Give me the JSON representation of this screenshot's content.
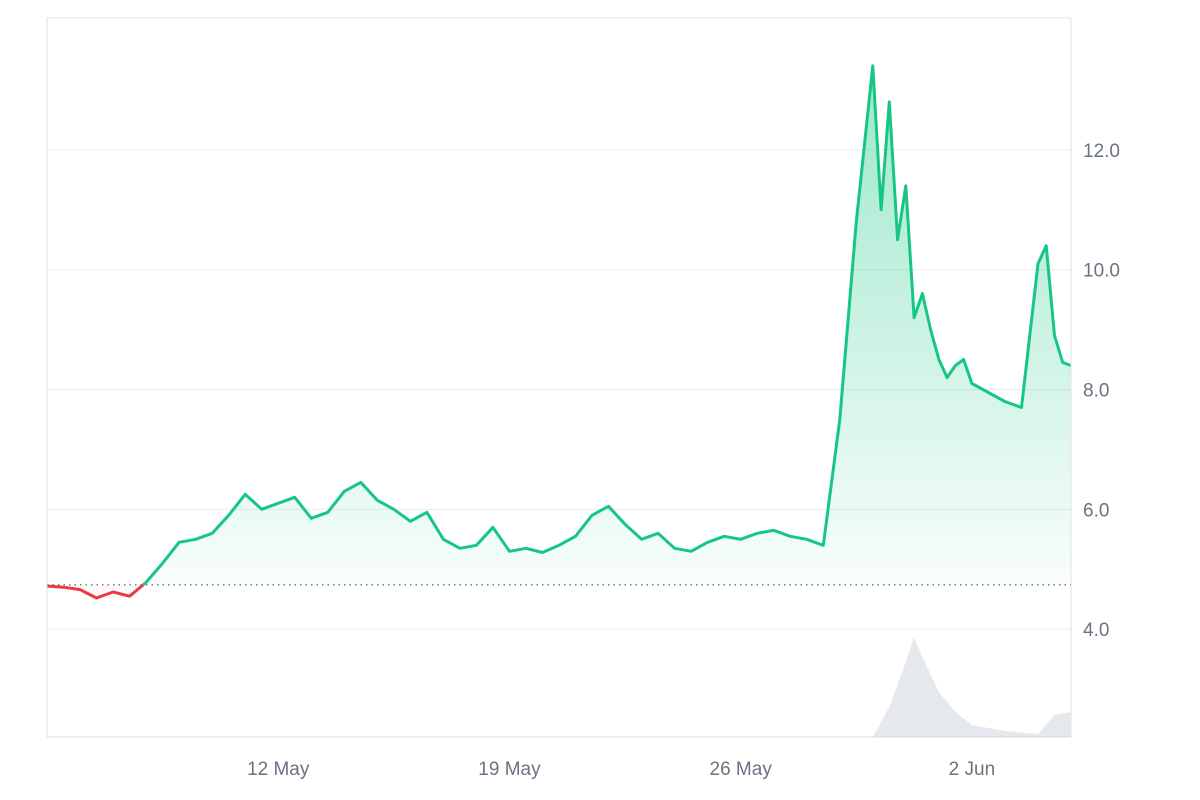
{
  "chart_data": {
    "type": "area",
    "x_tick_labels": [
      "12 May",
      "19 May",
      "26 May",
      "2 Jun"
    ],
    "x_ticks": [
      "2024-05-12",
      "2024-05-19",
      "2024-05-26",
      "2024-06-02"
    ],
    "x_range": [
      "2024-05-05",
      "2024-06-05"
    ],
    "y_ticks": [
      4.0,
      6.0,
      8.0,
      10.0,
      12.0
    ],
    "y_tick_labels": [
      "4.0",
      "6.0",
      "8.0",
      "10.0",
      "12.0"
    ],
    "ylim": [
      2.2,
      14.2
    ],
    "grid": true,
    "baseline": 4.74,
    "colors": {
      "up": "#16c784",
      "down": "#ea3943",
      "volume": "#e5e9ee",
      "grid": "#ececec",
      "baseline": "#555555"
    },
    "series": [
      {
        "x": [
          "2024-05-05",
          "2024-05-05T12:00",
          "2024-05-06",
          "2024-05-06T12:00",
          "2024-05-07",
          "2024-05-07T12:00",
          "2024-05-08",
          "2024-05-08T12:00",
          "2024-05-09",
          "2024-05-09T12:00",
          "2024-05-10",
          "2024-05-10T12:00",
          "2024-05-11",
          "2024-05-11T12:00",
          "2024-05-12",
          "2024-05-12T12:00",
          "2024-05-13",
          "2024-05-13T12:00",
          "2024-05-14",
          "2024-05-14T12:00",
          "2024-05-15",
          "2024-05-15T12:00",
          "2024-05-16",
          "2024-05-16T12:00",
          "2024-05-17",
          "2024-05-17T12:00",
          "2024-05-18",
          "2024-05-18T12:00",
          "2024-05-19",
          "2024-05-19T12:00",
          "2024-05-20",
          "2024-05-20T12:00",
          "2024-05-21",
          "2024-05-21T12:00",
          "2024-05-22",
          "2024-05-22T12:00",
          "2024-05-23",
          "2024-05-23T12:00",
          "2024-05-24",
          "2024-05-24T12:00",
          "2024-05-25",
          "2024-05-25T12:00",
          "2024-05-26",
          "2024-05-26T12:00",
          "2024-05-27",
          "2024-05-27T12:00",
          "2024-05-28",
          "2024-05-28T12:00",
          "2024-05-29",
          "2024-05-29T12:00",
          "2024-05-30",
          "2024-05-30T06:00",
          "2024-05-30T12:00",
          "2024-05-30T18:00",
          "2024-05-31",
          "2024-05-31T06:00",
          "2024-05-31T12:00",
          "2024-05-31T18:00",
          "2024-06-01",
          "2024-06-01T06:00",
          "2024-06-01T12:00",
          "2024-06-01T18:00",
          "2024-06-02",
          "2024-06-02T12:00",
          "2024-06-03",
          "2024-06-03T12:00",
          "2024-06-04",
          "2024-06-04T06:00",
          "2024-06-04T12:00",
          "2024-06-04T18:00",
          "2024-06-05"
        ],
        "y": [
          4.72,
          4.7,
          4.66,
          4.52,
          4.62,
          4.55,
          4.78,
          5.1,
          5.45,
          5.5,
          5.6,
          5.9,
          6.25,
          6.0,
          6.1,
          6.2,
          5.85,
          5.95,
          6.3,
          6.45,
          6.15,
          6.0,
          5.8,
          5.95,
          5.5,
          5.35,
          5.4,
          5.7,
          5.3,
          5.35,
          5.28,
          5.4,
          5.55,
          5.9,
          6.05,
          5.75,
          5.5,
          5.6,
          5.35,
          5.3,
          5.45,
          5.55,
          5.5,
          5.6,
          5.65,
          5.55,
          5.5,
          5.4,
          7.5,
          10.8,
          13.4,
          11.0,
          12.8,
          10.5,
          11.4,
          9.2,
          9.6,
          9.0,
          8.5,
          8.2,
          8.4,
          8.5,
          8.1,
          7.95,
          7.8,
          7.7,
          10.1,
          10.4,
          8.9,
          8.45,
          8.4
        ]
      }
    ],
    "volume": {
      "x": [
        "2024-05-05",
        "2024-05-30",
        "2024-05-30T12:00",
        "2024-05-31",
        "2024-05-31T06:00",
        "2024-05-31T12:00",
        "2024-06-01",
        "2024-06-01T12:00",
        "2024-06-02",
        "2024-06-03",
        "2024-06-04",
        "2024-06-04T12:00",
        "2024-06-05"
      ],
      "y": [
        0.0,
        0.0,
        0.3,
        0.75,
        1.0,
        0.8,
        0.45,
        0.25,
        0.12,
        0.06,
        0.03,
        0.22,
        0.25
      ]
    }
  }
}
